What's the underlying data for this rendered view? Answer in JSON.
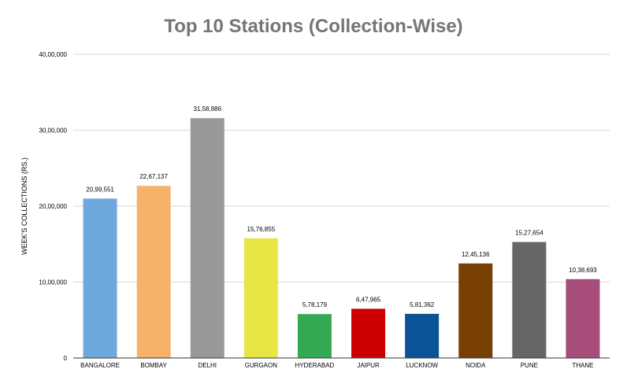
{
  "chart_data": {
    "type": "bar",
    "title": "Top 10 Stations (Collection-Wise)",
    "xlabel": "",
    "ylabel": "WEEK'S COLLECTIONS (RS.)",
    "ylim": [
      0,
      4000000
    ],
    "yticks": [
      0,
      1000000,
      2000000,
      3000000,
      4000000
    ],
    "ytick_labels": [
      "0",
      "10,00,000",
      "20,00,000",
      "30,00,000",
      "40,00,000"
    ],
    "grid": true,
    "legend": "none",
    "categories": [
      "BANGALORE",
      "BOMBAY",
      "DELHI",
      "GURGAON",
      "HYDERABAD",
      "JAIPUR",
      "LUCKNOW",
      "NOIDA",
      "PUNE",
      "THANE"
    ],
    "values": [
      2099551,
      2267137,
      3158886,
      1576855,
      578179,
      647965,
      581362,
      1245136,
      1527654,
      1038693
    ],
    "data_labels": [
      "20,99,551",
      "22,67,137",
      "31,58,886",
      "15,76,855",
      "5,78,179",
      "6,47,965",
      "5,81,362",
      "12,45,136",
      "15,27,654",
      "10,38,693"
    ],
    "colors": [
      "#6fa8dc",
      "#f6b26b",
      "#999999",
      "#e6e645",
      "#34a853",
      "#cc0000",
      "#0b5394",
      "#783f04",
      "#666666",
      "#a64d79"
    ]
  }
}
